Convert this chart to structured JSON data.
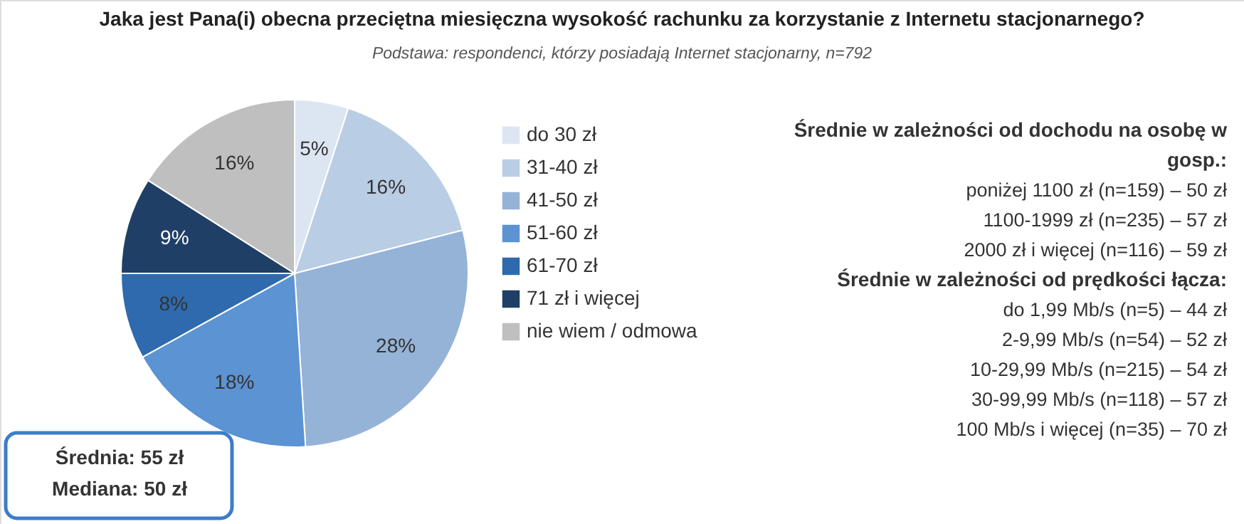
{
  "chart_data": {
    "type": "pie",
    "title": "Jaka jest Pana(i) obecna przeciętna miesięczna wysokość rachunku za korzystanie z Internetu stacjonarnego?",
    "subtitle": "Podstawa:  respondenci, którzy posiadają Internet stacjonarny, n=792",
    "categories": [
      "do 30 zł",
      "31-40 zł",
      "41-50 zł",
      "51-60 zł",
      "61-70 zł",
      "71 zł i więcej",
      "nie wiem / odmowa"
    ],
    "values": [
      5,
      16,
      28,
      18,
      8,
      9,
      16
    ],
    "value_labels": [
      "5%",
      "16%",
      "28%",
      "18%",
      "8%",
      "9%",
      "16%"
    ],
    "colors": [
      "#dce6f2",
      "#b9cde5",
      "#95b3d7",
      "#5b93d3",
      "#2e6aad",
      "#1f3f66",
      "#bfbfbf"
    ],
    "legend": "right",
    "annotations": [
      "Średnie w zależności od dochodu na osobę w gosp.:",
      "poniżej 1100 zł (n=159) – 50 zł",
      "1100-1999 zł (n=235) – 57 zł",
      "2000 zł i więcej (n=116) – 59 zł",
      "Średnie w zależności od prędkości łącza:",
      "do 1,99 Mb/s (n=5) – 44 zł",
      "2-9,99 Mb/s (n=54) – 52 zł",
      "10-29,99 Mb/s (n=215) – 54 zł",
      "30-99,99 Mb/s (n=118) – 57 zł",
      "100 Mb/s i więcej (n=35) – 70 zł",
      "Średnia: 55 zł",
      "Mediana: 50 zł"
    ]
  }
}
